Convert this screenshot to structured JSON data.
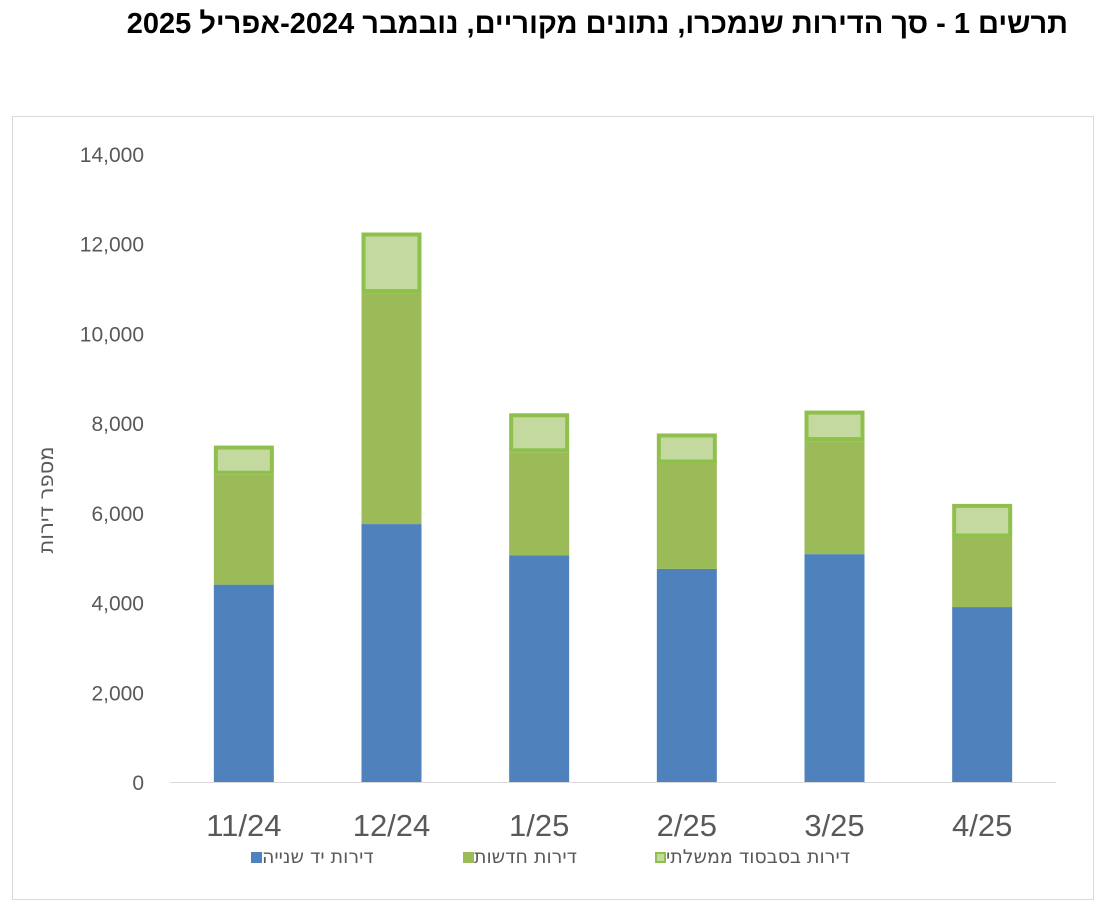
{
  "title": "תרשים 1 - סך הדירות שנמכרו, נתונים מקוריים, נובמבר 2024-אפריל 2025",
  "chart_data": {
    "type": "bar",
    "stacked": true,
    "categories": [
      "11/24",
      "12/24",
      "1/25",
      "2/25",
      "3/25",
      "4/25"
    ],
    "series": [
      {
        "name": "דירות יד שנייה",
        "color": "#4f81bd",
        "values": [
          4400,
          5750,
          5050,
          4750,
          5080,
          3900
        ]
      },
      {
        "name": "דירות חדשות",
        "color": "#9bbb59",
        "values": [
          2450,
          5150,
          2300,
          2350,
          2520,
          1550
        ]
      },
      {
        "name": "דירות בסבסוד ממשלתי",
        "color": "#c4d9a0",
        "border_color": "#8fc04b",
        "values": [
          650,
          1350,
          870,
          670,
          680,
          750
        ]
      }
    ],
    "xlabel": "",
    "ylabel": "מספר דירות",
    "ylim": [
      0,
      14000
    ],
    "yticks": [
      "0",
      "2,000",
      "4,000",
      "6,000",
      "8,000",
      "10,000",
      "12,000",
      "14,000"
    ],
    "grid": false,
    "legend_position": "bottom"
  }
}
